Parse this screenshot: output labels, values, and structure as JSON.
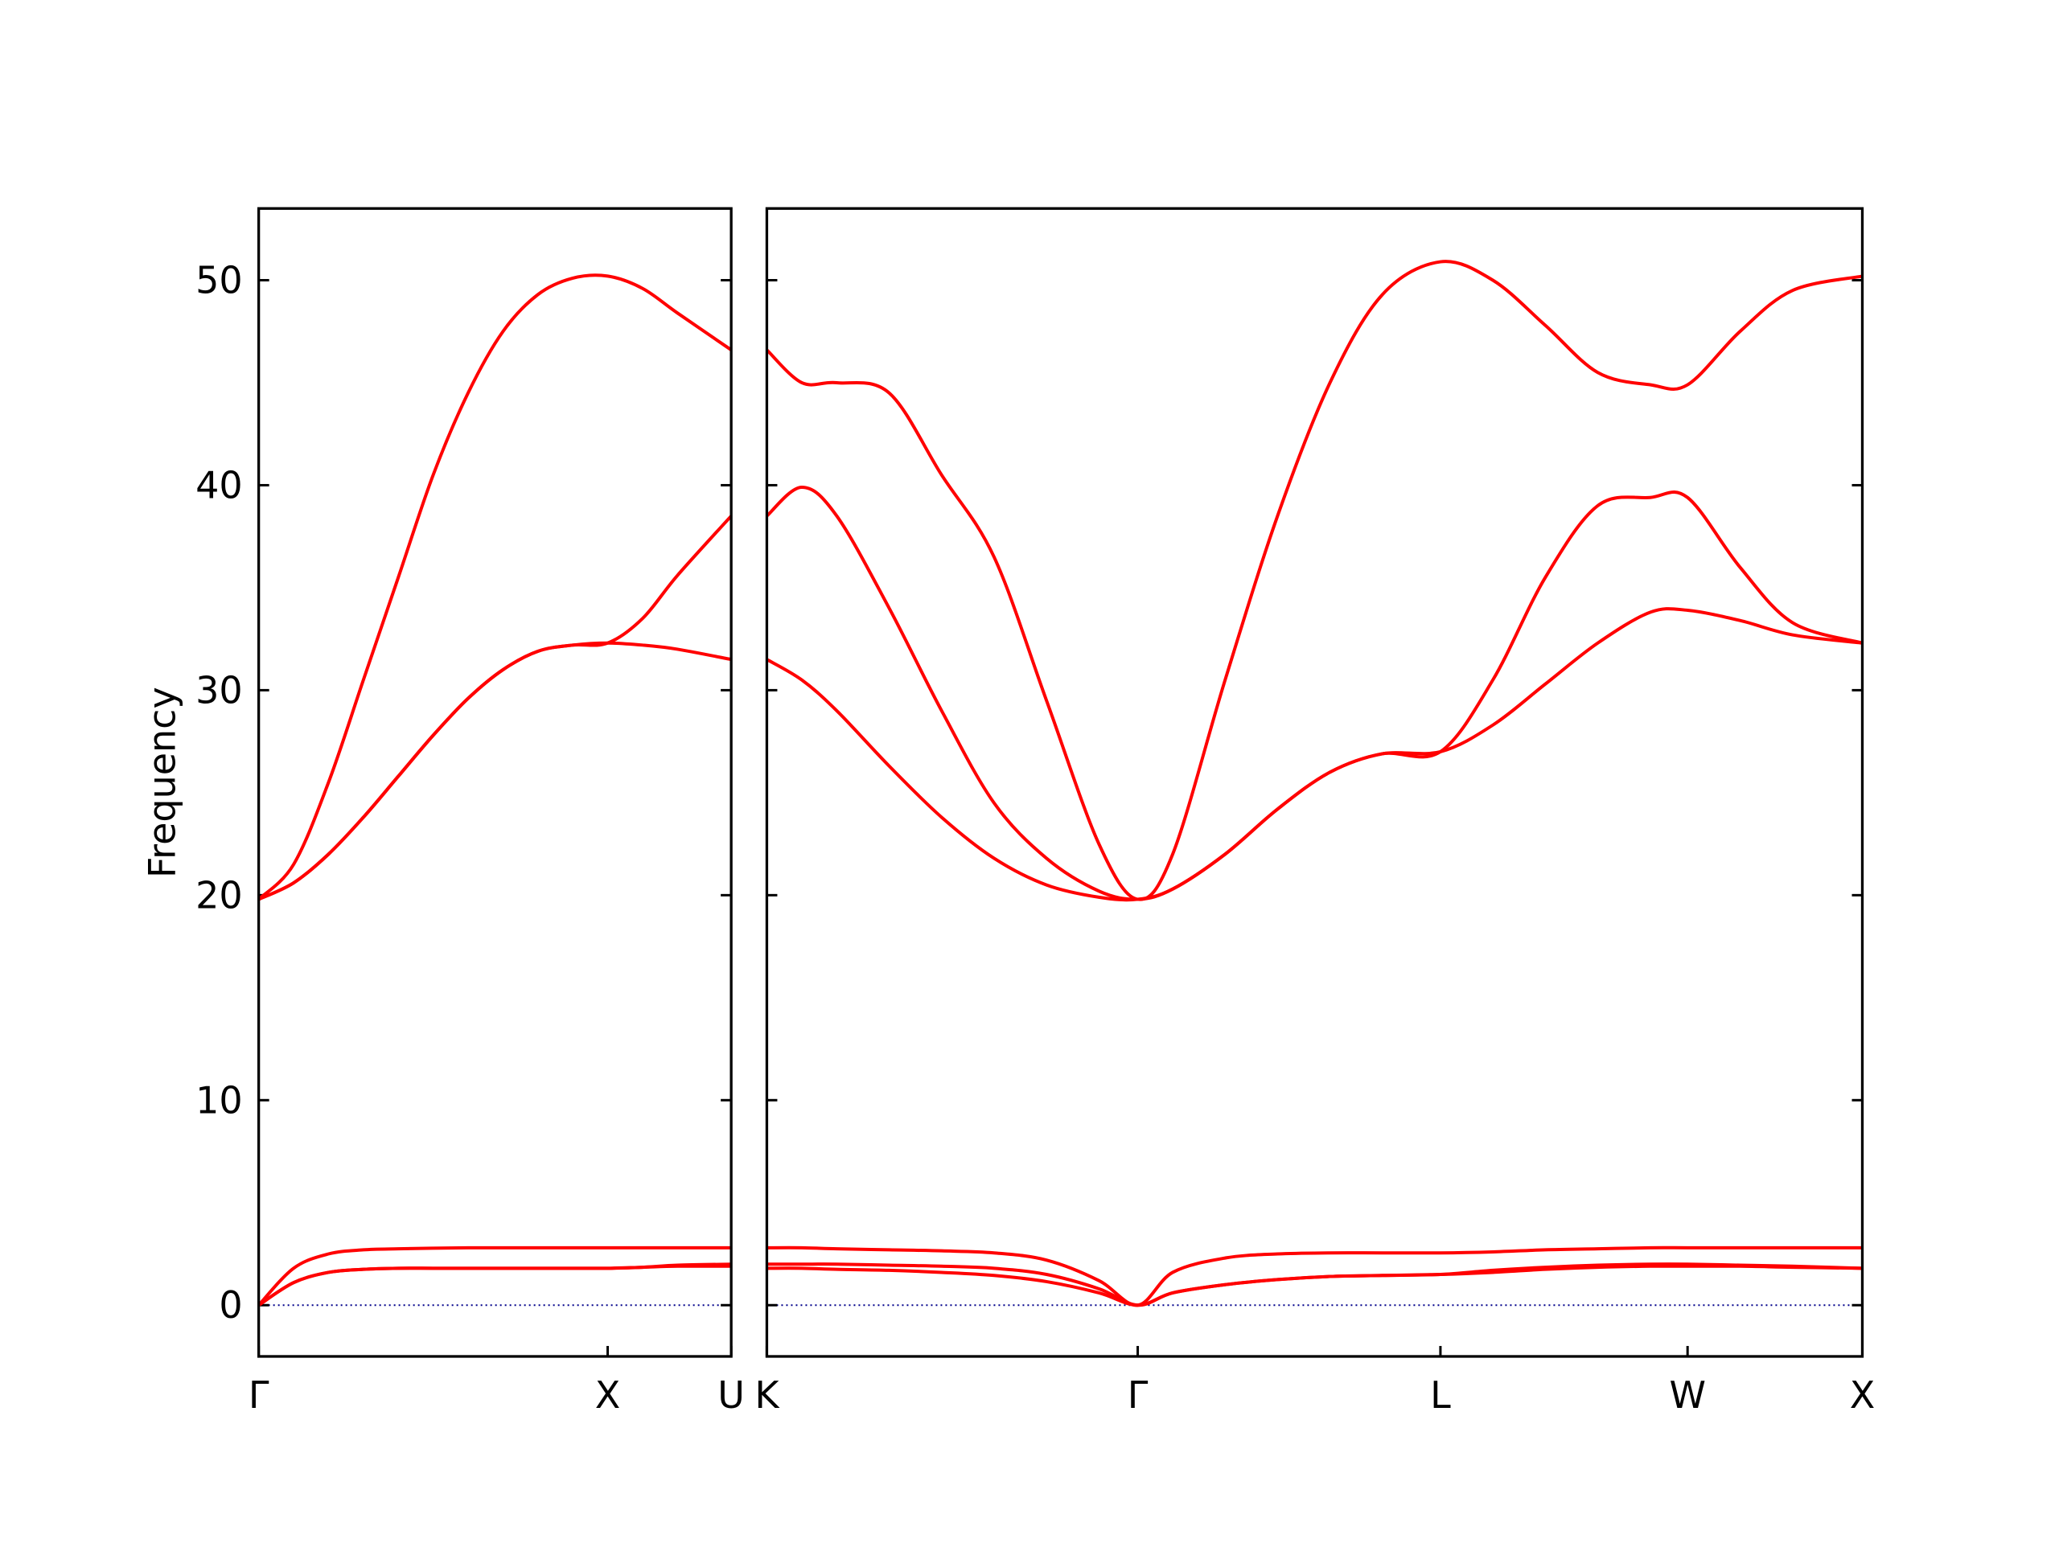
{
  "chart_data": [
    {
      "type": "line",
      "ylabel": "Frequency",
      "x": [
        0,
        0.1,
        0.2,
        0.3,
        0.4,
        0.5,
        0.6,
        0.7,
        0.8,
        0.9,
        1.0,
        1.1,
        1.2,
        1.354
      ],
      "xlim": [
        0,
        1.354
      ],
      "xticks": [
        {
          "value": 0,
          "label": "Γ"
        },
        {
          "value": 1.0,
          "label": "X"
        },
        {
          "value": 1.354,
          "label": "U"
        }
      ],
      "ylim": [
        -2.5,
        53.5
      ],
      "yticks": [
        0,
        10,
        20,
        30,
        40,
        50
      ],
      "ytick_labels": true,
      "zero_line_color": "#00008b",
      "series": [
        {
          "color": "#ff0000",
          "values": [
            19.8,
            21.5,
            25.5,
            30.5,
            35.5,
            40.5,
            44.5,
            47.5,
            49.3,
            50.1,
            50.2,
            49.6,
            48.4,
            46.6
          ]
        },
        {
          "color": "#ff0000",
          "values": [
            19.8,
            20.6,
            22.0,
            23.8,
            25.8,
            27.8,
            29.6,
            31.0,
            31.9,
            32.2,
            32.3,
            33.5,
            35.6,
            38.5
          ]
        },
        {
          "color": "#ff0000",
          "values": [
            19.8,
            20.6,
            22.0,
            23.8,
            25.8,
            27.8,
            29.6,
            31.0,
            31.9,
            32.2,
            32.3,
            32.2,
            32.0,
            31.5
          ]
        },
        {
          "color": "#ff0000",
          "values": [
            0,
            1.8,
            2.5,
            2.7,
            2.75,
            2.78,
            2.8,
            2.8,
            2.8,
            2.8,
            2.8,
            2.8,
            2.8,
            2.8
          ]
        },
        {
          "color": "#ff0000",
          "values": [
            0,
            1.1,
            1.6,
            1.75,
            1.8,
            1.8,
            1.8,
            1.8,
            1.8,
            1.8,
            1.8,
            1.85,
            1.95,
            2.0
          ]
        },
        {
          "color": "#ff0000",
          "values": [
            0,
            1.1,
            1.6,
            1.75,
            1.8,
            1.8,
            1.8,
            1.8,
            1.8,
            1.8,
            1.8,
            1.85,
            1.9,
            1.9
          ]
        }
      ]
    },
    {
      "type": "line",
      "x": [
        1.354,
        1.454,
        1.554,
        1.704,
        1.854,
        2.004,
        2.154,
        2.304,
        2.415,
        2.515,
        2.665,
        2.815,
        2.965,
        3.115,
        3.281,
        3.431,
        3.581,
        3.731,
        3.881,
        3.988,
        4.138,
        4.288,
        4.488
      ],
      "xlim": [
        1.354,
        4.488
      ],
      "xticks": [
        {
          "value": 1.354,
          "label": "K"
        },
        {
          "value": 2.415,
          "label": "Γ"
        },
        {
          "value": 3.281,
          "label": "L"
        },
        {
          "value": 3.988,
          "label": "W"
        },
        {
          "value": 4.488,
          "label": "X"
        }
      ],
      "ylim": [
        -2.5,
        53.5
      ],
      "yticks": [
        0,
        10,
        20,
        30,
        40,
        50
      ],
      "ytick_labels": false,
      "zero_line_color": "#00008b",
      "series": [
        {
          "color": "#ff0000",
          "values": [
            46.6,
            45.0,
            45.0,
            44.5,
            40.5,
            36.5,
            29.5,
            22.5,
            19.8,
            22.0,
            30.5,
            38.5,
            45.0,
            49.3,
            50.9,
            50.0,
            47.8,
            45.5,
            44.9,
            44.9,
            47.5,
            49.5,
            50.2
          ]
        },
        {
          "color": "#ff0000",
          "values": [
            38.5,
            39.9,
            38.5,
            34.0,
            29.0,
            24.5,
            21.8,
            20.2,
            19.8,
            20.3,
            22.0,
            24.2,
            26.0,
            26.9,
            27.0,
            30.5,
            35.5,
            39.0,
            39.4,
            39.4,
            36.0,
            33.3,
            32.3
          ]
        },
        {
          "color": "#ff0000",
          "values": [
            31.5,
            30.5,
            29.0,
            26.3,
            23.8,
            21.8,
            20.5,
            19.9,
            19.8,
            20.3,
            22.0,
            24.2,
            26.0,
            26.9,
            27.0,
            28.3,
            30.3,
            32.3,
            33.8,
            33.9,
            33.4,
            32.7,
            32.3
          ]
        },
        {
          "color": "#ff0000",
          "values": [
            2.8,
            2.8,
            2.75,
            2.7,
            2.65,
            2.55,
            2.2,
            1.2,
            0,
            1.6,
            2.3,
            2.5,
            2.55,
            2.55,
            2.55,
            2.6,
            2.7,
            2.75,
            2.8,
            2.8,
            2.8,
            2.8,
            2.8
          ]
        },
        {
          "color": "#ff0000",
          "values": [
            2.0,
            2.0,
            2.0,
            1.95,
            1.9,
            1.8,
            1.5,
            0.8,
            0,
            0.6,
            1.0,
            1.25,
            1.4,
            1.45,
            1.5,
            1.7,
            1.85,
            1.95,
            2.0,
            2.0,
            1.95,
            1.9,
            1.8
          ]
        },
        {
          "color": "#ff0000",
          "values": [
            1.8,
            1.8,
            1.75,
            1.7,
            1.6,
            1.45,
            1.15,
            0.6,
            0,
            0.6,
            1.0,
            1.25,
            1.4,
            1.45,
            1.5,
            1.6,
            1.75,
            1.85,
            1.9,
            1.9,
            1.9,
            1.85,
            1.8
          ]
        }
      ]
    }
  ]
}
